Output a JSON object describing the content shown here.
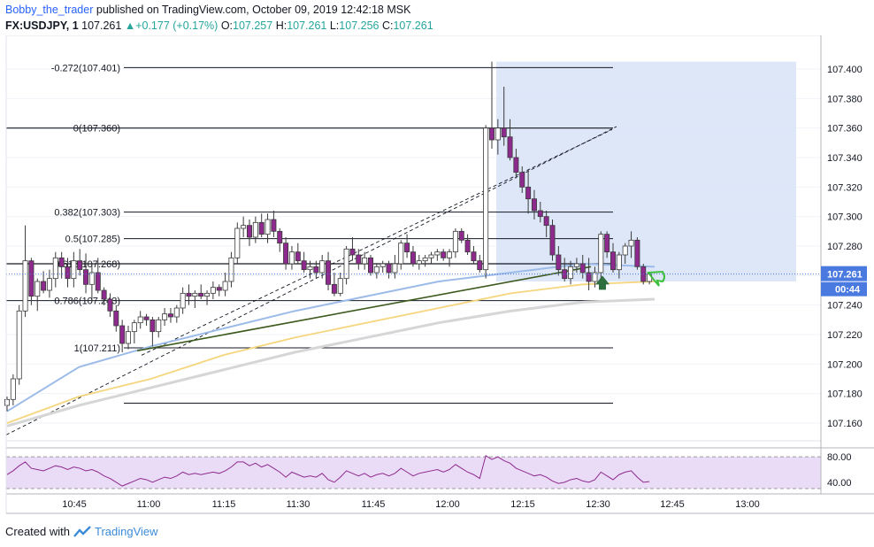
{
  "header": {
    "author": "Bobby_the_trader",
    "published": " published on TradingView.com, October 09, 2019 12:42:18 MSK",
    "symbol": "FX:USDJPY, 1",
    "last": "107.261",
    "change_arrow": "▲",
    "change": "+0.177 (+0.17%)",
    "o_label": "O:",
    "o_value": "107.257",
    "h_label": "H:",
    "h_value": "107.261",
    "l_label": "L:",
    "l_value": "107.256",
    "c_label": "C:",
    "c_value": "107.261"
  },
  "footer": {
    "created_with": "Created with",
    "brand": "TradingView",
    "logo_icon": "tradingview-logo-icon"
  },
  "colors": {
    "up": "#26a69a",
    "down_body": "#8e2a8e",
    "bull_body": "#ffffff",
    "ema_fast": "#9cbbe8",
    "ema_mid": "#f5d57e",
    "ema_slow": "#d6d6d6",
    "fib": "#131722",
    "position_zone": "#dae4f7",
    "trendline": "#3d5a1e",
    "rsi": "#8e2a8e",
    "rsi_band": "#eadcf7",
    "price_tag": "#4a7ae0",
    "arrow_up": "#2f6e3f",
    "marker_green": "#3cbf3c"
  },
  "chart_data": {
    "type": "candlestick",
    "y_axis": {
      "ticks": [
        "107.400",
        "107.380",
        "107.360",
        "107.340",
        "107.320",
        "107.300",
        "107.280",
        "107.260",
        "107.240",
        "107.220",
        "107.200",
        "107.180",
        "107.160"
      ],
      "range": [
        107.148,
        107.412
      ]
    },
    "x_axis": {
      "ticks": [
        "10:45",
        "11:00",
        "11:15",
        "11:30",
        "11:45",
        "12:00",
        "12:15",
        "12:30",
        "12:45",
        "13:00"
      ]
    },
    "price_tag": {
      "value": "107.261",
      "countdown": "00:44"
    },
    "fib_levels": [
      {
        "label": "-0.272(107.401)",
        "value": 107.401
      },
      {
        "label": "0(107.360)",
        "value": 107.36
      },
      {
        "label": "0.382(107.303)",
        "value": 107.303
      },
      {
        "label": "0.5(107.285)",
        "value": 107.285
      },
      {
        "label": "0.618(107.268)",
        "value": 107.268
      },
      {
        "label": "0.786(107.243)",
        "value": 107.243
      },
      {
        "label": "1(107.211)",
        "value": 107.211
      },
      {
        "label": "",
        "value": 107.1735
      }
    ],
    "candles": [
      [
        107.172,
        107.178,
        107.168,
        107.176
      ],
      [
        107.176,
        107.193,
        107.172,
        107.19
      ],
      [
        107.19,
        107.24,
        107.186,
        107.236
      ],
      [
        107.236,
        107.294,
        107.232,
        107.27
      ],
      [
        107.27,
        107.272,
        107.24,
        107.246
      ],
      [
        107.246,
        107.258,
        107.236,
        107.256
      ],
      [
        107.256,
        107.263,
        107.248,
        107.25
      ],
      [
        107.25,
        107.264,
        107.245,
        107.258
      ],
      [
        107.258,
        107.276,
        107.252,
        107.272
      ],
      [
        107.272,
        107.276,
        107.258,
        107.266
      ],
      [
        107.266,
        107.272,
        107.252,
        107.258
      ],
      [
        107.258,
        107.276,
        107.252,
        107.27
      ],
      [
        107.27,
        107.278,
        107.26,
        107.264
      ],
      [
        107.264,
        107.275,
        107.248,
        107.254
      ],
      [
        107.254,
        107.268,
        107.242,
        107.262
      ],
      [
        107.262,
        107.272,
        107.248,
        107.25
      ],
      [
        107.25,
        107.252,
        107.24,
        107.244
      ],
      [
        107.244,
        107.248,
        107.232,
        107.236
      ],
      [
        107.236,
        107.24,
        107.222,
        107.226
      ],
      [
        107.226,
        107.23,
        107.208,
        107.214
      ],
      [
        107.214,
        107.226,
        107.21,
        107.222
      ],
      [
        107.222,
        107.23,
        107.214,
        107.228
      ],
      [
        107.228,
        107.236,
        107.224,
        107.232
      ],
      [
        107.232,
        107.234,
        107.226,
        107.23
      ],
      [
        107.23,
        107.232,
        107.212,
        107.222
      ],
      [
        107.222,
        107.232,
        107.218,
        107.23
      ],
      [
        107.23,
        107.238,
        107.226,
        107.234
      ],
      [
        107.234,
        107.238,
        107.228,
        107.232
      ],
      [
        107.232,
        107.24,
        107.228,
        107.238
      ],
      [
        107.238,
        107.252,
        107.234,
        107.248
      ],
      [
        107.248,
        107.254,
        107.24,
        107.246
      ],
      [
        107.246,
        107.25,
        107.238,
        107.248
      ],
      [
        107.248,
        107.254,
        107.244,
        107.246
      ],
      [
        107.246,
        107.25,
        107.24,
        107.248
      ],
      [
        107.248,
        107.256,
        107.244,
        107.252
      ],
      [
        107.252,
        107.254,
        107.246,
        107.25
      ],
      [
        107.25,
        107.262,
        107.246,
        107.256
      ],
      [
        107.256,
        107.276,
        107.252,
        107.272
      ],
      [
        107.272,
        107.296,
        107.268,
        107.292
      ],
      [
        107.292,
        107.3,
        107.286,
        107.294
      ],
      [
        107.294,
        107.298,
        107.28,
        107.286
      ],
      [
        107.286,
        107.3,
        107.282,
        107.296
      ],
      [
        107.296,
        107.302,
        107.286,
        107.288
      ],
      [
        107.288,
        107.302,
        107.282,
        107.298
      ],
      [
        107.298,
        107.304,
        107.286,
        107.29
      ],
      [
        107.29,
        107.292,
        107.276,
        107.282
      ],
      [
        107.282,
        107.286,
        107.264,
        107.268
      ],
      [
        107.268,
        107.28,
        107.264,
        107.276
      ],
      [
        107.276,
        107.282,
        107.268,
        107.27
      ],
      [
        107.27,
        107.276,
        107.262,
        107.264
      ],
      [
        107.264,
        107.27,
        107.258,
        107.266
      ],
      [
        107.266,
        107.27,
        107.258,
        107.262
      ],
      [
        107.262,
        107.274,
        107.258,
        107.27
      ],
      [
        107.27,
        107.276,
        107.25,
        107.254
      ],
      [
        107.254,
        107.262,
        107.246,
        107.248
      ],
      [
        107.248,
        107.262,
        107.246,
        107.258
      ],
      [
        107.258,
        107.28,
        107.254,
        107.278
      ],
      [
        107.278,
        107.286,
        107.27,
        107.274
      ],
      [
        107.274,
        107.278,
        107.264,
        107.268
      ],
      [
        107.268,
        107.276,
        107.264,
        107.272
      ],
      [
        107.272,
        107.274,
        107.26,
        107.262
      ],
      [
        107.262,
        107.268,
        107.258,
        107.266
      ],
      [
        107.266,
        107.27,
        107.262,
        107.268
      ],
      [
        107.268,
        107.27,
        107.258,
        107.262
      ],
      [
        107.262,
        107.274,
        107.258,
        107.268
      ],
      [
        107.268,
        107.284,
        107.264,
        107.282
      ],
      [
        107.282,
        107.288,
        107.272,
        107.276
      ],
      [
        107.276,
        107.28,
        107.266,
        107.268
      ],
      [
        107.268,
        107.274,
        107.264,
        107.27
      ],
      [
        107.27,
        107.274,
        107.266,
        107.272
      ],
      [
        107.272,
        107.276,
        107.268,
        107.274
      ],
      [
        107.274,
        107.278,
        107.27,
        107.276
      ],
      [
        107.276,
        107.278,
        107.27,
        107.272
      ],
      [
        107.272,
        107.278,
        107.266,
        107.276
      ],
      [
        107.276,
        107.292,
        107.272,
        107.29
      ],
      [
        107.29,
        107.292,
        107.282,
        107.284
      ],
      [
        107.284,
        107.288,
        107.274,
        107.276
      ],
      [
        107.276,
        107.28,
        107.268,
        107.27
      ],
      [
        107.27,
        107.274,
        107.262,
        107.264
      ],
      [
        107.264,
        107.362,
        107.258,
        107.36
      ],
      [
        107.36,
        107.405,
        107.346,
        107.352
      ],
      [
        107.352,
        107.366,
        107.342,
        107.36
      ],
      [
        107.36,
        107.388,
        107.348,
        107.354
      ],
      [
        107.354,
        107.366,
        107.338,
        107.34
      ],
      [
        107.34,
        107.346,
        107.326,
        107.33
      ],
      [
        107.33,
        107.334,
        107.316,
        107.32
      ],
      [
        107.32,
        107.332,
        107.302,
        107.312
      ],
      [
        107.312,
        107.318,
        107.298,
        107.304
      ],
      [
        107.304,
        107.31,
        107.296,
        107.3
      ],
      [
        107.3,
        107.304,
        107.286,
        107.294
      ],
      [
        107.294,
        107.298,
        107.27,
        107.274
      ],
      [
        107.274,
        107.28,
        107.26,
        107.264
      ],
      [
        107.264,
        107.272,
        107.256,
        107.258
      ],
      [
        107.258,
        107.27,
        107.254,
        107.266
      ],
      [
        107.266,
        107.272,
        107.262,
        107.268
      ],
      [
        107.268,
        107.274,
        107.258,
        107.262
      ],
      [
        107.262,
        107.272,
        107.25,
        107.256
      ],
      [
        107.256,
        107.266,
        107.252,
        107.262
      ],
      [
        107.262,
        107.29,
        107.258,
        107.288
      ],
      [
        107.288,
        107.29,
        107.272,
        107.276
      ],
      [
        107.276,
        107.282,
        107.262,
        107.264
      ],
      [
        107.264,
        107.276,
        107.258,
        107.274
      ],
      [
        107.274,
        107.282,
        107.268,
        107.28
      ],
      [
        107.28,
        107.29,
        107.272,
        107.284
      ],
      [
        107.284,
        107.286,
        107.264,
        107.266
      ],
      [
        107.266,
        107.268,
        107.254,
        107.256
      ],
      [
        107.256,
        107.262,
        107.254,
        107.261
      ]
    ],
    "rsi": [
      52,
      58,
      66,
      72,
      62,
      60,
      58,
      62,
      66,
      64,
      60,
      64,
      62,
      58,
      60,
      56,
      50,
      46,
      40,
      34,
      38,
      42,
      46,
      44,
      40,
      44,
      48,
      46,
      50,
      56,
      52,
      54,
      52,
      54,
      56,
      54,
      58,
      64,
      72,
      72,
      66,
      70,
      64,
      68,
      62,
      56,
      48,
      56,
      52,
      48,
      50,
      48,
      54,
      44,
      40,
      48,
      58,
      54,
      50,
      54,
      48,
      52,
      54,
      50,
      54,
      62,
      56,
      50,
      54,
      56,
      58,
      60,
      56,
      60,
      68,
      62,
      56,
      52,
      46,
      82,
      76,
      80,
      74,
      70,
      62,
      58,
      54,
      50,
      52,
      48,
      42,
      38,
      40,
      44,
      46,
      42,
      40,
      44,
      56,
      50,
      44,
      52,
      56,
      58,
      48,
      40,
      41
    ],
    "ema_fast": [
      107.168,
      107.198,
      107.212,
      107.224,
      107.236,
      107.246,
      107.256,
      107.262,
      107.268,
      107.266
    ],
    "ema_mid": [
      107.16,
      107.178,
      107.19,
      107.206,
      107.218,
      107.228,
      107.238,
      107.248,
      107.254,
      107.256
    ],
    "ema_slow": [
      107.158,
      107.172,
      107.184,
      107.196,
      107.208,
      107.218,
      107.228,
      107.236,
      107.242,
      107.244
    ],
    "rsi_axis": [
      "80.00",
      "40.00"
    ]
  }
}
